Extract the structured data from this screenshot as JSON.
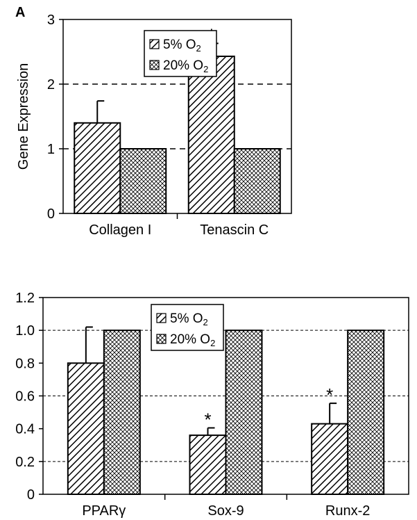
{
  "chart_data": [
    {
      "type": "bar",
      "panel_label": "A",
      "ylabel": "Gene Expression",
      "ylim": [
        0,
        3
      ],
      "yticks": [
        "0",
        "1",
        "2",
        "3"
      ],
      "grid": "dashed at 1 and 2",
      "categories": [
        "Collagen I",
        "Tenascin C"
      ],
      "series": [
        {
          "name": "5% O2",
          "pattern": "diagonal",
          "values": [
            1.4,
            2.43
          ],
          "errors": [
            0.34,
            0.2
          ],
          "significant": [
            false,
            true
          ]
        },
        {
          "name": "20% O2",
          "pattern": "crosshatch",
          "values": [
            1.0,
            1.0
          ],
          "errors": [
            0,
            0
          ],
          "significant": [
            false,
            false
          ]
        }
      ],
      "legend": [
        "5% O",
        "20% O"
      ],
      "legend_subscript": "2",
      "legend_position": "top-center",
      "significance_marker": "*"
    },
    {
      "type": "bar",
      "panel_label": "",
      "ylabel": "",
      "ylim": [
        0,
        1.2
      ],
      "yticks": [
        "0",
        "0.2",
        "0.4",
        "0.6",
        "0.8",
        "1.0",
        "1.2"
      ],
      "grid": "dashed at 0.2, 0.6, 1.0",
      "categories": [
        "PPARγ",
        "Sox-9",
        "Runx-2"
      ],
      "series": [
        {
          "name": "5% O2",
          "pattern": "diagonal",
          "values": [
            0.8,
            0.36,
            0.43
          ],
          "errors": [
            0.22,
            0.045,
            0.125
          ],
          "significant": [
            false,
            true,
            true
          ]
        },
        {
          "name": "20% O2",
          "pattern": "crosshatch",
          "values": [
            1.0,
            1.0,
            1.0
          ],
          "errors": [
            0,
            0,
            0
          ],
          "significant": [
            false,
            false,
            false
          ]
        }
      ],
      "legend": [
        "5% O",
        "20% O"
      ],
      "legend_subscript": "2",
      "legend_position": "top-left",
      "significance_marker": "*"
    }
  ]
}
